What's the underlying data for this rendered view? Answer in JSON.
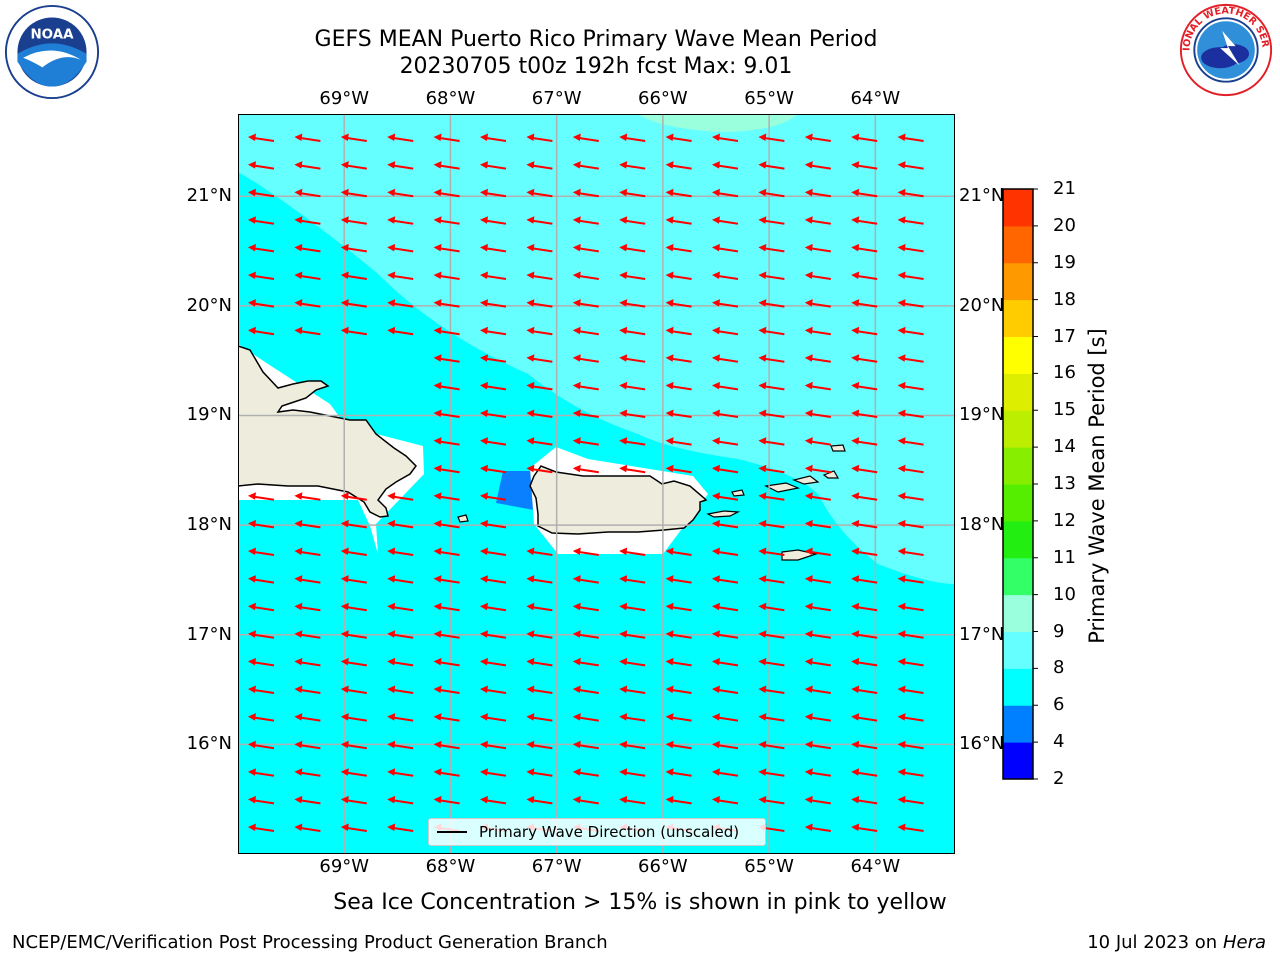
{
  "title": {
    "line1": "GEFS MEAN Puerto Rico Primary Wave Mean Period",
    "line2": "20230705 t00z 192h fcst   Max: 9.01"
  },
  "logos": {
    "left": {
      "name": "noaa-logo",
      "text": "NOAA"
    },
    "right": {
      "name": "nws-logo",
      "text": "NATIONAL WEATHER SERVICE"
    }
  },
  "map": {
    "lon_ticks": [
      "69°W",
      "68°W",
      "67°W",
      "66°W",
      "65°W",
      "64°W"
    ],
    "lat_ticks": [
      "21°N",
      "20°N",
      "19°N",
      "18°N",
      "17°N",
      "16°N"
    ],
    "lon_values": [
      -69,
      -68,
      -67,
      -66,
      -65,
      -64
    ],
    "lat_values": [
      21,
      20,
      19,
      18,
      17,
      16
    ],
    "extent": {
      "lon_min": -70.0,
      "lon_max": -63.25,
      "lat_min": 15.0,
      "lat_max": 21.75
    },
    "legend_text": "Primary Wave Direction (unscaled)",
    "arrow_color": "#ff0000",
    "land_color": "#eeecdc",
    "grid": true
  },
  "colorbar": {
    "label": "Primary Wave Mean Period [s]",
    "ticks": [
      "2",
      "4",
      "6",
      "8",
      "9",
      "10",
      "11",
      "12",
      "13",
      "14",
      "15",
      "16",
      "17",
      "18",
      "19",
      "20",
      "21"
    ],
    "colors": [
      "#0000ff",
      "#0080ff",
      "#00ffff",
      "#66ffff",
      "#99ffdd",
      "#33ff66",
      "#22ee11",
      "#55ee00",
      "#88ee00",
      "#bbee00",
      "#ddee00",
      "#ffff00",
      "#ffcc00",
      "#ff9900",
      "#ff6600",
      "#ff3300",
      "#ff0000"
    ]
  },
  "footnote": "Sea Ice Concentration > 15% is shown in pink to yellow",
  "footer": {
    "left": "NCEP/EMC/Verification Post Processing Product Generation Branch",
    "right_date": "10 Jul 2023 on",
    "right_host": "Hera"
  }
}
